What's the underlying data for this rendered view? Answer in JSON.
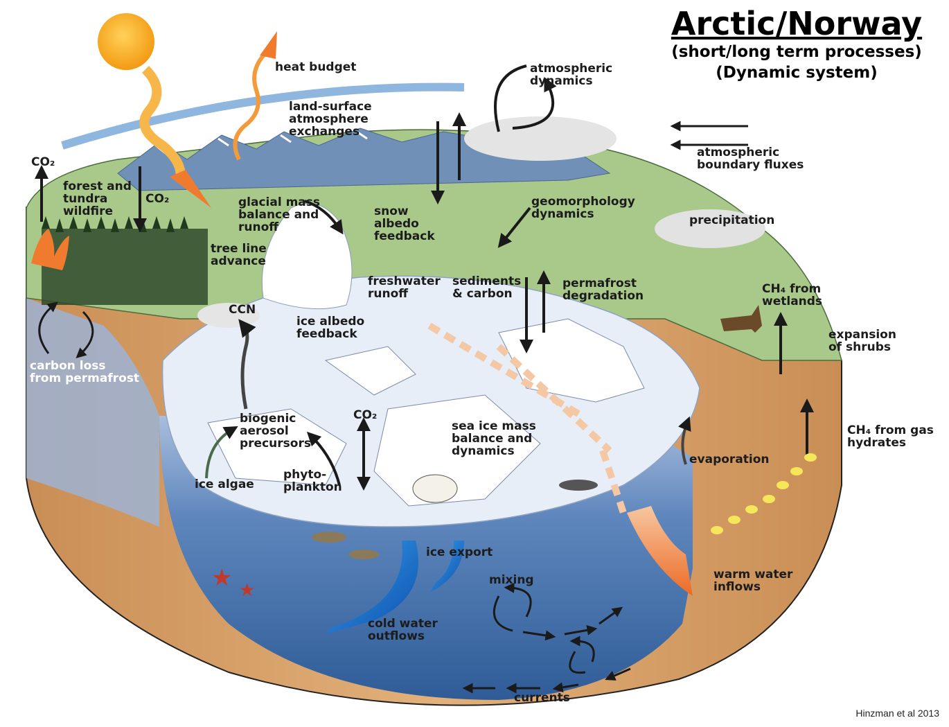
{
  "title": "Arctic/Norway",
  "subtitle1": "(short/long term processes)",
  "subtitle2": "(Dynamic system)",
  "credit": "Hinzman et al 2013",
  "labels": {
    "heat_budget": "heat budget",
    "land_surface": "land-surface\natmosphere\nexchanges",
    "atmospheric_dynamics": "atmospheric\ndynamics",
    "atmospheric_fluxes": "atmospheric\nboundary fluxes",
    "co2_top_left": "CO₂",
    "forest_wildfire": "forest and\ntundra\nwildfire",
    "co2_forest": "CO₂",
    "glacial_mass": "glacial mass\nbalance and\nrunoff",
    "snow_albedo": "snow\nalbedo\nfeedback",
    "geomorphology": "geomorphology\ndynamics",
    "precipitation": "precipitation",
    "tree_line": "tree line\nadvance",
    "freshwater_runoff": "freshwater\nrunoff",
    "sediments": "sediments\n& carbon",
    "permafrost_deg": "permafrost\ndegradation",
    "ch4_wetlands": "CH₄ from\nwetlands",
    "ccn": "CCN",
    "ice_albedo": "ice albedo\nfeedback",
    "expansion_shrubs": "expansion\nof shrubs",
    "carbon_loss": "carbon loss\nfrom permafrost",
    "biogenic_aerosol": "biogenic\naerosol\nprecursors",
    "co2_ocean": "CO₂",
    "sea_ice_mass": "sea ice mass\nbalance and\ndynamics",
    "ch4_gas": "CH₄ from gas\nhydrates",
    "evaporation": "evaporation",
    "ice_algae": "ice algae",
    "phytoplankton": "phyto-\nplankton",
    "ice_export": "ice export",
    "mixing": "mixing",
    "warm_water": "warm water\ninflows",
    "cold_water": "cold water\noutflows",
    "currents": "currents"
  },
  "colors": {
    "sun": "#f7a71c",
    "atmosphere_band": "#8fb6df",
    "land_green": "#a9c98a",
    "sea_ice": "#e8eef7",
    "ocean_deep": "#3f6ea8",
    "ocean_light": "#9fb5d6",
    "soil": "#d9a46d",
    "warm_arrow": "#f07b2f",
    "cold_arrow": "#1f6fc4",
    "forest": "#2f4a2a",
    "mountain": "#7090b8"
  }
}
